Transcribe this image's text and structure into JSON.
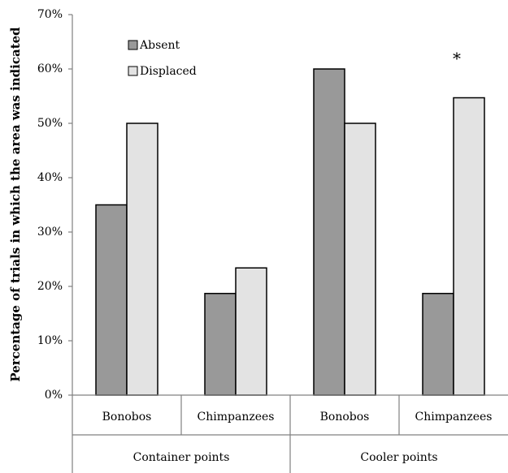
{
  "chart_data": {
    "type": "bar",
    "title": "",
    "ylabel": "Percentage of trials in which the area was indicated",
    "xlabel": "",
    "ylim": [
      0,
      70
    ],
    "yticks": [
      "0%",
      "10%",
      "20%",
      "30%",
      "40%",
      "50%",
      "60%",
      "70%"
    ],
    "categories": [
      "Bonobos",
      "Chimpanzees",
      "Bonobos",
      "Chimpanzees"
    ],
    "groups": [
      {
        "label": "Container points",
        "categories": [
          0,
          1
        ]
      },
      {
        "label": "Cooler points",
        "categories": [
          2,
          3
        ]
      }
    ],
    "series": [
      {
        "name": "Absent",
        "color": "#999999",
        "values": [
          35,
          18.7,
          60,
          18.7
        ]
      },
      {
        "name": "Displaced",
        "color": "#e3e3e3",
        "values": [
          50,
          23.4,
          50,
          54.7
        ]
      }
    ],
    "annotations": [
      {
        "text": "*",
        "category": 3,
        "value": 63
      }
    ],
    "legend": {
      "position": "top-left",
      "entries": [
        "Absent",
        "Displaced"
      ]
    },
    "grid": false
  }
}
